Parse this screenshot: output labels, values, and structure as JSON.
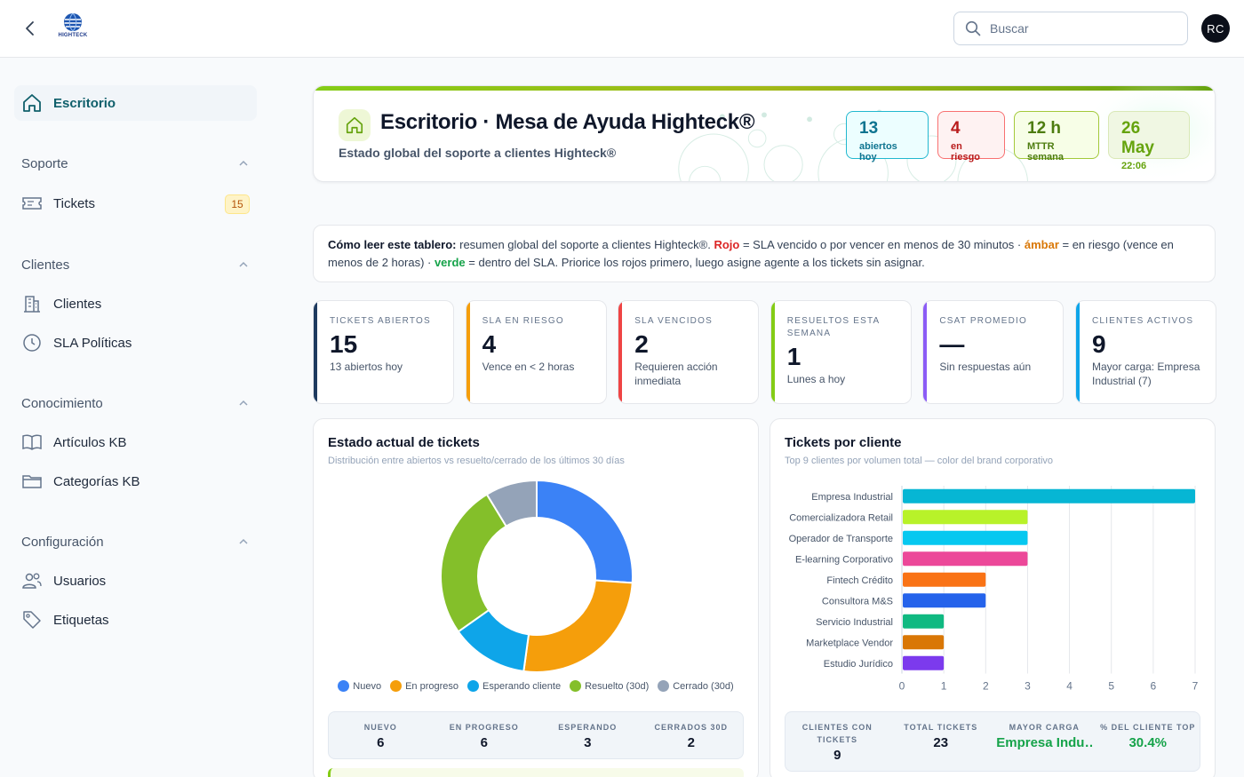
{
  "topbar": {
    "logo_text": "HIGHTECK",
    "search_placeholder": "Buscar",
    "avatar_initials": "RC"
  },
  "sidebar": {
    "home": {
      "label": "Escritorio",
      "icon": "home-icon"
    },
    "sections": [
      {
        "title": "Soporte",
        "items": [
          {
            "label": "Tickets",
            "icon": "ticket-icon",
            "badge": "15"
          }
        ]
      },
      {
        "title": "Clientes",
        "items": [
          {
            "label": "Clientes",
            "icon": "building-icon"
          },
          {
            "label": "SLA Políticas",
            "icon": "clock-icon"
          }
        ]
      },
      {
        "title": "Conocimiento",
        "items": [
          {
            "label": "Artículos KB",
            "icon": "book-icon"
          },
          {
            "label": "Categorías KB",
            "icon": "folder-icon"
          }
        ]
      },
      {
        "title": "Configuración",
        "items": [
          {
            "label": "Usuarios",
            "icon": "users-icon"
          },
          {
            "label": "Etiquetas",
            "icon": "tag-icon"
          }
        ]
      }
    ]
  },
  "hero": {
    "title": "Escritorio · Mesa de Ayuda Highteck®",
    "subtitle": "Estado global del soporte a clientes Highteck®",
    "chips": [
      {
        "value": "13",
        "label": "abiertos hoy",
        "color": "#0e7490",
        "bg": "#ecfeff",
        "border": "#22b8cf"
      },
      {
        "value": "4",
        "label": "en riesgo",
        "color": "#b91c1c",
        "bg": "#fef2f2",
        "border": "#f87171"
      },
      {
        "value": "12 h",
        "label": "MTTR semana",
        "color": "#4d7c0f",
        "bg": "#f7fee7",
        "border": "#a3c93a"
      },
      {
        "value": "26 May",
        "label": "22:06",
        "color": "#65a30d",
        "bg": "#f0f7e3",
        "border": "#d9e8b6"
      }
    ]
  },
  "legend": {
    "lead": "Cómo leer este tablero:",
    "p1": " resumen global del soporte a clientes Highteck®. ",
    "rojo": "Rojo",
    "p2": " = SLA vencido o por vencer en menos de 30 minutos · ",
    "ambar": "ámbar",
    "p3": " = en riesgo (vence en menos de 2 horas) · ",
    "verde": "verde",
    "p4": " = dentro del SLA. Priorice los rojos primero, luego asigne agente a los tickets sin asignar."
  },
  "kpis": [
    {
      "title": "Tickets abiertos",
      "value": "15",
      "desc": "13 abiertos hoy",
      "color": "#1e3a5f"
    },
    {
      "title": "SLA en riesgo",
      "value": "4",
      "desc": "Vence en < 2 horas",
      "color": "#f59e0b"
    },
    {
      "title": "SLA vencidos",
      "value": "2",
      "desc": "Requieren acción inmediata",
      "color": "#ef4444"
    },
    {
      "title": "Resueltos esta semana",
      "value": "1",
      "desc": "Lunes a hoy",
      "color": "#84cc16"
    },
    {
      "title": "CSAT promedio",
      "value": "—",
      "desc": "Sin respuestas aún",
      "color": "#8b5cf6"
    },
    {
      "title": "Clientes activos",
      "value": "9",
      "desc": "Mayor carga: Empresa Industrial (7)",
      "color": "#0ea5e9"
    }
  ],
  "donut_card": {
    "title": "Estado actual de tickets",
    "subtitle": "Distribución entre abiertos vs resuelto/cerrado de los últimos 30 días",
    "stats": [
      {
        "label": "Nuevo",
        "value": "6"
      },
      {
        "label": "En progreso",
        "value": "6"
      },
      {
        "label": "Esperando",
        "value": "3"
      },
      {
        "label": "Cerrados 30d",
        "value": "2"
      }
    ]
  },
  "bar_card": {
    "title": "Tickets por cliente",
    "subtitle": "Top 9 clientes por volumen total — color del brand corporativo",
    "stats": [
      {
        "label": "Clientes con tickets",
        "value": "9",
        "color": "#0f172a"
      },
      {
        "label": "Total tickets",
        "value": "23",
        "color": "#0f172a"
      },
      {
        "label": "Mayor carga",
        "value": "Empresa Indu…",
        "color": "#16a34a"
      },
      {
        "label": "% del cliente top",
        "value": "30.4%",
        "color": "#16a34a"
      }
    ]
  },
  "chart_data": [
    {
      "type": "pie",
      "labels": [
        "Nuevo",
        "En progreso",
        "Esperando cliente",
        "Resuelto (30d)",
        "Cerrado (30d)"
      ],
      "values": [
        6,
        6,
        3,
        6,
        2
      ],
      "colors": [
        "#3b82f6",
        "#f59e0b",
        "#0ea5e9",
        "#84bf2a",
        "#94a3b8"
      ],
      "legend": "bottom"
    },
    {
      "type": "bar",
      "orientation": "horizontal",
      "categories": [
        "Empresa Industrial",
        "Comercializadora Retail",
        "Operador de Transporte",
        "E-learning Corporativo",
        "Fintech Crédito",
        "Consultora M&S",
        "Servicio Industrial",
        "Marketplace Vendor",
        "Estudio Jurídico"
      ],
      "values": [
        7,
        3,
        3,
        3,
        2,
        2,
        1,
        1,
        1
      ],
      "colors": [
        "#06b6d4",
        "#b8f229",
        "#06c8f0",
        "#ec4899",
        "#f97316",
        "#2563eb",
        "#10b981",
        "#d97706",
        "#7c3aed"
      ],
      "xlim": [
        0,
        7
      ],
      "xticks": [
        0,
        1,
        2,
        3,
        4,
        5,
        6,
        7
      ],
      "grid": true
    }
  ]
}
